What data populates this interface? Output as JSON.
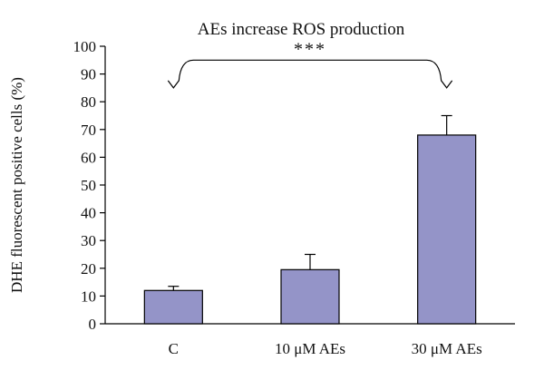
{
  "chart_data": {
    "type": "bar",
    "title": "AEs increase ROS production",
    "xlabel": "",
    "ylabel": "DHE fluorescent positive cells (%)",
    "categories": [
      "C",
      "10 μM AEs",
      "30 μM AEs"
    ],
    "values": [
      12,
      19.5,
      68
    ],
    "error_plus": [
      1.5,
      5.5,
      7
    ],
    "ylim": [
      0,
      100
    ],
    "yticks": [
      0,
      10,
      20,
      30,
      40,
      50,
      60,
      70,
      80,
      90,
      100
    ],
    "bar_color": "#9494c8",
    "grid": false,
    "significance": {
      "label": "***",
      "from_category": "C",
      "to_category": "30 μM AEs",
      "level": 85
    }
  }
}
